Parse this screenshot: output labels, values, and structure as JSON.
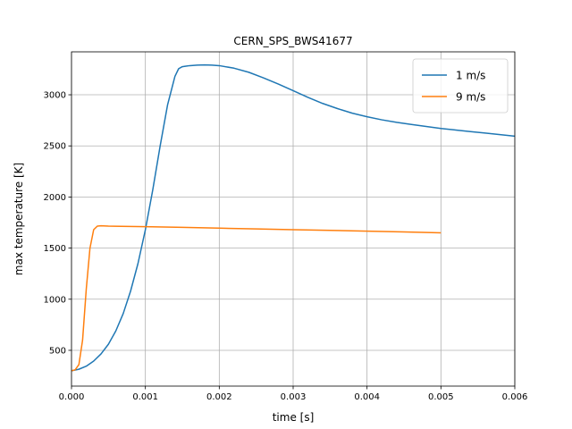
{
  "chart_data": {
    "type": "line",
    "title": "CERN_SPS_BWS41677",
    "xlabel": "time [s]",
    "ylabel": "max temperature [K]",
    "xlim": [
      0.0,
      0.006
    ],
    "ylim": [
      150,
      3420
    ],
    "xticks": [
      0.0,
      0.001,
      0.002,
      0.003,
      0.004,
      0.005,
      0.006
    ],
    "xtick_labels": [
      "0.000",
      "0.001",
      "0.002",
      "0.003",
      "0.004",
      "0.005",
      "0.006"
    ],
    "yticks": [
      500,
      1000,
      1500,
      2000,
      2500,
      3000
    ],
    "ytick_labels": [
      "500",
      "1000",
      "1500",
      "2000",
      "2500",
      "3000"
    ],
    "grid": true,
    "legend_position": "top-right",
    "series": [
      {
        "name": "1 m/s",
        "color": "#1f77b4",
        "x": [
          0.0,
          0.0001,
          0.0002,
          0.0003,
          0.0004,
          0.0005,
          0.0006,
          0.0007,
          0.0008,
          0.0009,
          0.001,
          0.0011,
          0.0012,
          0.0013,
          0.0014,
          0.00145,
          0.0015,
          0.00155,
          0.0016,
          0.0017,
          0.0018,
          0.0019,
          0.002,
          0.0022,
          0.0024,
          0.0026,
          0.0028,
          0.003,
          0.0032,
          0.0034,
          0.0036,
          0.0038,
          0.004,
          0.0042,
          0.0044,
          0.0046,
          0.0048,
          0.005,
          0.0052,
          0.0054,
          0.0056,
          0.0058,
          0.006
        ],
        "y": [
          300,
          315,
          345,
          395,
          465,
          560,
          690,
          860,
          1080,
          1350,
          1680,
          2070,
          2500,
          2900,
          3180,
          3255,
          3275,
          3280,
          3285,
          3290,
          3292,
          3290,
          3285,
          3260,
          3220,
          3165,
          3105,
          3040,
          2975,
          2915,
          2865,
          2820,
          2785,
          2755,
          2730,
          2710,
          2690,
          2670,
          2655,
          2640,
          2625,
          2610,
          2595
        ]
      },
      {
        "name": "9 m/s",
        "color": "#ff7f0e",
        "x": [
          0.0,
          5e-05,
          0.0001,
          0.00015,
          0.0002,
          0.00025,
          0.0003,
          0.00035,
          0.0004,
          0.0005,
          0.001,
          0.0015,
          0.002,
          0.0025,
          0.003,
          0.0035,
          0.004,
          0.0045,
          0.005
        ],
        "y": [
          300,
          310,
          360,
          600,
          1100,
          1500,
          1680,
          1715,
          1718,
          1715,
          1710,
          1703,
          1695,
          1688,
          1680,
          1673,
          1666,
          1658,
          1650
        ]
      }
    ]
  }
}
